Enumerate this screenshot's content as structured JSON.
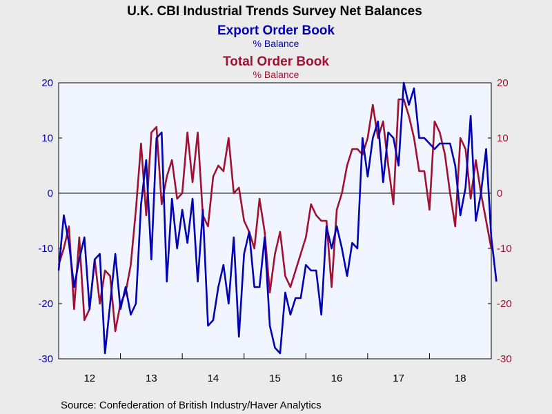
{
  "chart_data": {
    "type": "line",
    "title": "U.K. CBI Industrial Trends Survey Net Balances",
    "x_ticks": [
      "12",
      "13",
      "14",
      "15",
      "16",
      "17",
      "18"
    ],
    "ylim": [
      -30,
      20
    ],
    "y_ticks": [
      -30,
      -20,
      -10,
      0,
      10,
      20
    ],
    "x_start": "2012-01",
    "grid": false,
    "zero_line": true,
    "source": "Source:  Confederation of British Industry/Haver Analytics",
    "series": [
      {
        "name": "Export Order Book",
        "unit": "% Balance",
        "axis": "left",
        "color": "#0000b4",
        "values": [
          -14,
          -4,
          -9,
          -17,
          -12,
          -8,
          -21,
          -12,
          -11,
          -29,
          -20,
          -11,
          -21,
          -17,
          -22,
          -20,
          -2,
          6,
          -12,
          10,
          11,
          -16,
          -1,
          -10,
          -3,
          -9,
          -1,
          -16,
          -3,
          -24,
          -23,
          -17,
          -13,
          -20,
          -8,
          -26,
          -11,
          -7,
          -17,
          -17,
          -8,
          -24,
          -28,
          -29,
          -18,
          -22,
          -19,
          -19,
          -13,
          -14,
          -14,
          -22,
          -6,
          -10,
          -6,
          -10,
          -15,
          -9,
          -10,
          10,
          3,
          10,
          13,
          2,
          11,
          10,
          5,
          20,
          16,
          19,
          10,
          10,
          9,
          8,
          9,
          9,
          9,
          5,
          -4,
          1,
          14,
          -5,
          0,
          8,
          -8,
          -16
        ]
      },
      {
        "name": "Total Order Book",
        "unit": "% Balance",
        "axis": "right",
        "color": "#a01030",
        "values": [
          -13,
          -10,
          -6,
          -21,
          -8,
          -23,
          -21,
          -12,
          -20,
          -14,
          -15,
          -25,
          -20,
          -18,
          -13,
          -3,
          9,
          -4,
          11,
          12,
          -2,
          3,
          6,
          -1,
          0,
          11,
          2,
          11,
          -4,
          -6,
          3,
          5,
          4,
          10,
          0,
          1,
          -5,
          -7,
          -10,
          -1,
          -7,
          -18,
          -11,
          -7,
          -15,
          -17,
          -14,
          -11,
          -8,
          -2,
          -4,
          -5,
          -5,
          -17,
          -3,
          0,
          5,
          8,
          8,
          7,
          10,
          16,
          10,
          13,
          5,
          -2,
          17,
          17,
          14,
          10,
          4,
          4,
          -3,
          13,
          11,
          7,
          0,
          -6,
          10,
          8,
          -1,
          6,
          0,
          -5,
          -10
        ]
      }
    ]
  }
}
